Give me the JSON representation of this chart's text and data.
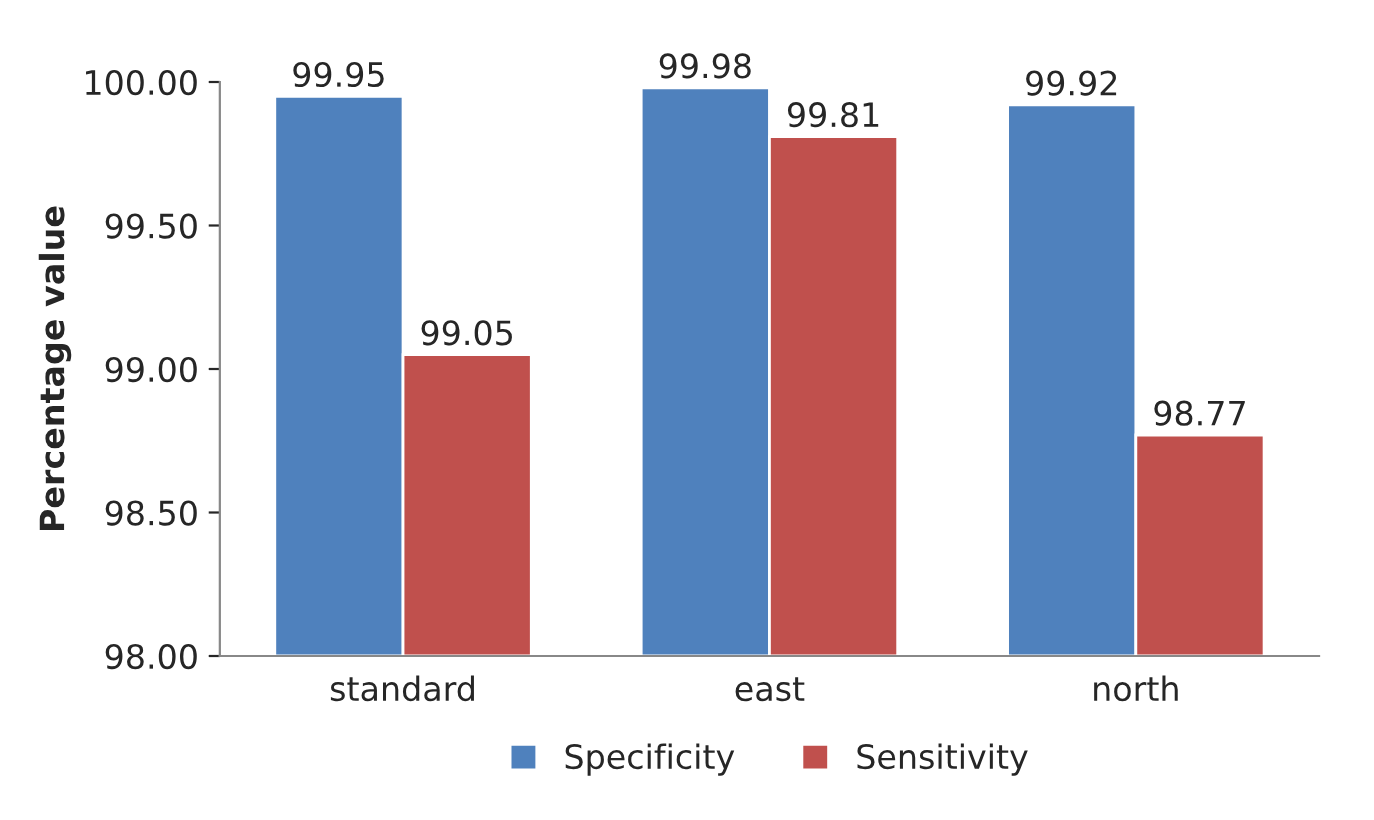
{
  "chart_data": {
    "type": "bar",
    "ylabel": "Percentage value",
    "categories": [
      "standard",
      "east",
      "north"
    ],
    "series": [
      {
        "name": "Specificity",
        "color": "#4f81bd",
        "values": [
          99.95,
          99.98,
          99.92
        ]
      },
      {
        "name": "Sensitivity",
        "color": "#c0504d",
        "values": [
          99.05,
          99.81,
          98.77
        ]
      }
    ],
    "ylim": [
      98,
      100
    ],
    "yticks": [
      {
        "value": 98,
        "label": "98.00"
      },
      {
        "value": 98.5,
        "label": "98.50"
      },
      {
        "value": 99,
        "label": "99.00"
      },
      {
        "value": 99.5,
        "label": "99.50"
      },
      {
        "value": 100,
        "label": "100.00"
      }
    ],
    "data_labels": true,
    "grid": false,
    "legend": "bottom"
  }
}
